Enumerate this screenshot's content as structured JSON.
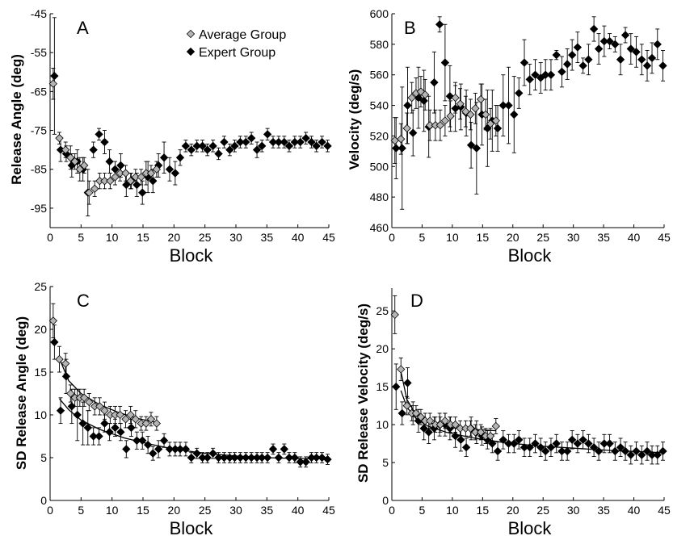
{
  "colors": {
    "average": "#b5b5b5",
    "expert": "#000000",
    "marker_edge": "#000000"
  },
  "legend": {
    "position": "top-right-of-panel-A",
    "average_label": "Average Group",
    "expert_label": "Expert Group"
  },
  "chart_data": [
    {
      "panel": "A",
      "type": "scatter",
      "title": "",
      "xlabel": "Block",
      "ylabel": "Release Angle (deg)",
      "xlim": [
        0,
        45
      ],
      "ylim": [
        -100,
        -45
      ],
      "xticks": [
        "0",
        "5",
        "10",
        "15",
        "20",
        "25",
        "30",
        "35",
        "40",
        "45"
      ],
      "yticks": [
        "-95",
        "-85",
        "-75",
        "-65",
        "-55",
        "-45"
      ],
      "series": [
        {
          "name": "Average Group",
          "x": [
            0.5,
            1.5,
            2.5,
            3.3,
            4.0,
            4.8,
            5.5,
            6.3,
            7.2,
            8.0,
            8.8,
            9.7,
            10.5,
            11.3,
            12.2,
            13.0,
            13.8,
            14.7,
            15.5,
            16.3,
            17.2
          ],
          "y": [
            -63,
            -77,
            -80,
            -82,
            -83,
            -85,
            -84,
            -91,
            -90,
            -88,
            -88,
            -88,
            -87,
            -86,
            -86,
            -88,
            -87,
            -87,
            -86,
            -86,
            -85
          ],
          "err": [
            4,
            1.5,
            2,
            3,
            2,
            3,
            2,
            3,
            2,
            2,
            2,
            2,
            2,
            2,
            2,
            2,
            2,
            2,
            3,
            2,
            2
          ]
        },
        {
          "name": "Expert Group",
          "x": [
            0.7,
            1.7,
            2.6,
            3.5,
            4.4,
            5.3,
            6.1,
            7.0,
            7.9,
            8.8,
            9.6,
            10.5,
            11.4,
            12.3,
            13.1,
            14.0,
            14.9,
            15.8,
            16.6,
            17.5,
            18.4,
            19.3,
            20.2,
            21.0,
            21.9,
            22.8,
            23.7,
            24.6,
            25.4,
            26.3,
            27.2,
            28.1,
            29.0,
            29.8,
            30.7,
            31.6,
            32.5,
            33.4,
            34.2,
            35.1,
            36.0,
            36.9,
            37.8,
            38.6,
            39.5,
            40.4,
            41.3,
            42.2,
            43.0,
            43.9,
            44.8
          ],
          "y": [
            -61,
            -80,
            -81,
            -84,
            -83,
            -85,
            -91,
            -80,
            -76,
            -78,
            -83,
            -85,
            -84,
            -89,
            -88,
            -89,
            -91,
            -87,
            -88,
            -84,
            -82,
            -85,
            -86,
            -82,
            -79,
            -80,
            -79,
            -79,
            -80,
            -79,
            -81,
            -78,
            -80,
            -79,
            -78,
            -78,
            -77,
            -80,
            -79,
            -76,
            -78,
            -78,
            -78,
            -79,
            -78,
            -78,
            -77,
            -78,
            -79,
            -78,
            -79
          ],
          "err": [
            15,
            3,
            2,
            3,
            3,
            3,
            6,
            2,
            1.5,
            3,
            3,
            2,
            3,
            3,
            2,
            3,
            3,
            4,
            3,
            3,
            4,
            3,
            3,
            2,
            1.5,
            1.5,
            1.5,
            1.5,
            1.5,
            1.5,
            1.5,
            1.5,
            1.5,
            1.5,
            1.5,
            1.5,
            1.5,
            2,
            1.5,
            1.5,
            1.5,
            1.5,
            1.5,
            1.5,
            1.5,
            1.5,
            1.5,
            1.5,
            1.5,
            1.5,
            1.5
          ]
        }
      ]
    },
    {
      "panel": "B",
      "type": "scatter",
      "title": "",
      "xlabel": "Block",
      "ylabel": "Velocity (deg/s)",
      "xlim": [
        0,
        45
      ],
      "ylim": [
        460,
        600
      ],
      "xticks": [
        "0",
        "5",
        "10",
        "15",
        "20",
        "25",
        "30",
        "35",
        "40",
        "45"
      ],
      "yticks": [
        "460",
        "480",
        "500",
        "520",
        "540",
        "560",
        "580",
        "600"
      ],
      "series": [
        {
          "name": "Average Group",
          "x": [
            0.5,
            1.5,
            2.5,
            3.3,
            4.0,
            4.8,
            5.5,
            6.3,
            7.2,
            8.0,
            8.8,
            9.7,
            10.5,
            11.3,
            12.2,
            13.0,
            13.8,
            14.7,
            15.5,
            16.3,
            17.2
          ],
          "y": [
            517,
            518,
            525,
            545,
            548,
            549,
            547,
            527,
            527,
            527,
            530,
            533,
            545,
            541,
            536,
            534,
            538,
            544,
            534,
            528,
            530
          ],
          "err": [
            15,
            10,
            10,
            10,
            10,
            10,
            10,
            10,
            10,
            10,
            10,
            10,
            10,
            10,
            10,
            10,
            10,
            10,
            10,
            10,
            10
          ]
        },
        {
          "name": "Expert Group",
          "x": [
            0.7,
            1.7,
            2.6,
            3.5,
            4.4,
            5.3,
            6.1,
            7.0,
            7.9,
            8.8,
            9.6,
            10.5,
            11.4,
            12.3,
            13.1,
            14.0,
            14.9,
            15.8,
            16.6,
            17.5,
            18.4,
            19.3,
            20.2,
            21.0,
            21.9,
            22.8,
            23.7,
            24.6,
            25.4,
            26.3,
            27.2,
            28.1,
            29.0,
            29.8,
            30.7,
            31.6,
            32.5,
            33.4,
            34.2,
            35.1,
            36.0,
            36.9,
            37.8,
            38.6,
            39.5,
            40.4,
            41.3,
            42.2,
            43.0,
            43.9,
            44.8
          ],
          "y": [
            512,
            512,
            540,
            522,
            545,
            543,
            526,
            555,
            593,
            568,
            546,
            538,
            539,
            535,
            514,
            512,
            534,
            525,
            530,
            525,
            540,
            540,
            534,
            548,
            568,
            557,
            560,
            558,
            560,
            560,
            573,
            562,
            567,
            573,
            578,
            566,
            570,
            590,
            577,
            582,
            582,
            580,
            570,
            586,
            577,
            575,
            570,
            566,
            571,
            580,
            566
          ],
          "err": [
            20,
            40,
            25,
            15,
            20,
            20,
            20,
            20,
            5,
            25,
            20,
            15,
            15,
            15,
            15,
            30,
            20,
            25,
            20,
            15,
            20,
            25,
            25,
            10,
            15,
            10,
            10,
            10,
            10,
            10,
            3,
            10,
            10,
            10,
            10,
            5,
            10,
            8,
            10,
            10,
            5,
            5,
            10,
            5,
            10,
            10,
            10,
            10,
            10,
            10,
            10
          ]
        }
      ]
    },
    {
      "panel": "C",
      "type": "scatter",
      "title": "",
      "xlabel": "Block",
      "ylabel": "SD Release Angle (deg)",
      "xlim": [
        0,
        45
      ],
      "ylim": [
        0,
        25
      ],
      "xticks": [
        "0",
        "5",
        "10",
        "15",
        "20",
        "25",
        "30",
        "35",
        "40",
        "45"
      ],
      "yticks": [
        "0",
        "5",
        "10",
        "15",
        "20",
        "25"
      ],
      "series": [
        {
          "name": "Average Group",
          "x": [
            0.5,
            1.5,
            2.5,
            3.3,
            4.0,
            4.8,
            5.5,
            6.3,
            7.2,
            8.0,
            8.8,
            9.7,
            10.5,
            11.3,
            12.2,
            13.0,
            13.8,
            14.7,
            15.5,
            16.3,
            17.2
          ],
          "y": [
            21,
            16.5,
            16,
            12.5,
            12,
            12,
            12,
            11.5,
            11,
            11,
            10.5,
            10,
            10,
            10,
            9.5,
            10,
            9.5,
            9,
            9,
            9.5,
            9
          ],
          "err": [
            2,
            1.5,
            1.2,
            1,
            1,
            1,
            1,
            1,
            1,
            1,
            1,
            1,
            1,
            1,
            1,
            1,
            1,
            0.8,
            0.8,
            0.8,
            0.8
          ]
        },
        {
          "name": "Expert Group",
          "x": [
            0.7,
            1.7,
            2.6,
            3.5,
            4.4,
            5.3,
            6.1,
            7.0,
            7.9,
            8.8,
            9.6,
            10.5,
            11.4,
            12.3,
            13.1,
            14.0,
            14.9,
            15.8,
            16.6,
            17.5,
            18.4,
            19.3,
            20.2,
            21.0,
            21.9,
            22.8,
            23.7,
            24.6,
            25.4,
            26.3,
            27.2,
            28.1,
            29.0,
            29.8,
            30.7,
            31.6,
            32.5,
            33.4,
            34.2,
            35.1,
            36.0,
            36.9,
            37.8,
            38.6,
            39.5,
            40.4,
            41.3,
            42.2,
            43.0,
            43.9,
            44.8
          ],
          "y": [
            18.5,
            10.5,
            14.5,
            11,
            10,
            9,
            8.5,
            7.5,
            7.5,
            9,
            8,
            8.5,
            8,
            6,
            8.5,
            7,
            7,
            6.5,
            5.5,
            6,
            7,
            6,
            6,
            6,
            6,
            5,
            5.5,
            5,
            5,
            5.5,
            5,
            5,
            5,
            5,
            5,
            5,
            5,
            5,
            5,
            5,
            6,
            5,
            6,
            5,
            5,
            4.5,
            4.5,
            5,
            5,
            5,
            4.8
          ],
          "err": [
            2,
            1.5,
            2,
            2,
            3,
            2.5,
            2,
            1,
            1,
            1,
            1,
            1,
            1,
            1,
            1,
            1,
            1,
            1,
            0.8,
            1,
            0.8,
            0.8,
            0.8,
            0.8,
            0.8,
            0.6,
            0.6,
            0.6,
            0.6,
            0.6,
            0.6,
            0.6,
            0.6,
            0.6,
            0.6,
            0.6,
            0.6,
            0.6,
            0.6,
            0.6,
            0.6,
            0.6,
            0.6,
            0.6,
            0.6,
            0.6,
            0.6,
            0.6,
            0.6,
            0.6,
            0.6
          ]
        }
      ],
      "fits": [
        {
          "series": "Average Group",
          "x": [
            1.5,
            3,
            5,
            8,
            11,
            14,
            17.2
          ],
          "y": [
            16.6,
            14.0,
            12.5,
            11.2,
            10.3,
            9.6,
            9.1
          ]
        },
        {
          "series": "Expert Group",
          "x": [
            1.5,
            3,
            5,
            8,
            12,
            16,
            20,
            25,
            30,
            35,
            40,
            44.8
          ],
          "y": [
            11.9,
            10.6,
            9.4,
            8.3,
            7.3,
            6.6,
            6.0,
            5.5,
            5.2,
            5.0,
            4.9,
            4.9
          ]
        }
      ]
    },
    {
      "panel": "D",
      "type": "scatter",
      "title": "",
      "xlabel": "Block",
      "ylabel": "SD Release Velocity (deg/s)",
      "xlim": [
        0,
        45
      ],
      "ylim": [
        0,
        28
      ],
      "xticks": [
        "0",
        "5",
        "10",
        "15",
        "20",
        "25",
        "30",
        "35",
        "40",
        "45"
      ],
      "yticks": [
        "0",
        "5",
        "10",
        "15",
        "20",
        "25"
      ],
      "series": [
        {
          "name": "Average Group",
          "x": [
            0.5,
            1.5,
            2.5,
            3.3,
            4.0,
            4.8,
            5.5,
            6.3,
            7.2,
            8.0,
            8.8,
            9.7,
            10.5,
            11.3,
            12.2,
            13.0,
            13.8,
            14.7,
            15.5,
            16.3,
            17.2
          ],
          "y": [
            24.5,
            17.3,
            12.5,
            11.5,
            11.5,
            11,
            10.5,
            10.5,
            10,
            10,
            10.5,
            10,
            10,
            9.5,
            9.5,
            9.5,
            9,
            9,
            8.5,
            8.5,
            9.8
          ],
          "err": [
            2.5,
            1.5,
            1.2,
            1,
            1,
            1,
            1,
            1,
            1,
            1,
            1,
            1,
            1,
            1,
            1,
            1,
            1,
            1,
            1,
            1,
            1
          ]
        },
        {
          "name": "Expert Group",
          "x": [
            0.7,
            1.7,
            2.6,
            3.5,
            4.4,
            5.3,
            6.1,
            7.0,
            7.9,
            8.8,
            9.6,
            10.5,
            11.4,
            12.3,
            13.1,
            14.0,
            14.9,
            15.8,
            16.6,
            17.5,
            18.4,
            19.3,
            20.2,
            21.0,
            21.9,
            22.8,
            23.7,
            24.6,
            25.4,
            26.3,
            27.2,
            28.1,
            29.0,
            29.8,
            30.7,
            31.6,
            32.5,
            33.4,
            34.2,
            35.1,
            36.0,
            36.9,
            37.8,
            38.6,
            39.5,
            40.4,
            41.3,
            42.2,
            43.0,
            43.9,
            44.8
          ],
          "y": [
            15,
            11.5,
            15.5,
            11.5,
            10.5,
            9.5,
            9,
            9.5,
            10,
            10,
            9.5,
            8.5,
            8,
            7,
            9.5,
            9,
            8.5,
            8,
            7.5,
            6.5,
            8,
            7.5,
            7.5,
            8,
            7,
            7,
            7.5,
            7,
            6.5,
            7,
            7.5,
            6.5,
            6.5,
            8,
            7.5,
            8,
            7.5,
            7,
            6.5,
            7.5,
            7.5,
            6.5,
            7,
            6.5,
            6,
            6.5,
            6,
            6.5,
            6,
            6,
            6.5
          ],
          "err": [
            3,
            1.5,
            2,
            1.5,
            1.5,
            1.5,
            1.5,
            1.5,
            1.5,
            1.5,
            1.5,
            1.5,
            1.5,
            1.2,
            1.5,
            1.5,
            1.2,
            1.2,
            1.2,
            1.2,
            1.2,
            1.2,
            1.2,
            1.2,
            1.2,
            1.2,
            1.2,
            1.2,
            1.2,
            1.2,
            1.2,
            1.2,
            1.2,
            1.2,
            1.2,
            1.2,
            1.2,
            1.2,
            1.2,
            1.2,
            1.2,
            1.2,
            1.2,
            1.2,
            1.2,
            1.2,
            1.2,
            1.2,
            1.2,
            1.2,
            1.2
          ]
        }
      ],
      "fits": [
        {
          "series": "Average Group",
          "x": [
            1.5,
            2.5,
            4,
            6,
            9,
            12,
            15,
            17.2
          ],
          "y": [
            17.0,
            13.3,
            11.3,
            10.3,
            9.7,
            9.4,
            9.3,
            9.2
          ]
        },
        {
          "series": "Expert Group",
          "x": [
            1.5,
            2.5,
            4,
            6,
            9,
            13,
            18,
            24,
            30,
            36,
            42,
            44.8
          ],
          "y": [
            14.5,
            12.3,
            10.8,
            9.8,
            9.0,
            8.3,
            7.7,
            7.2,
            6.9,
            6.6,
            6.4,
            6.3
          ]
        }
      ]
    }
  ]
}
